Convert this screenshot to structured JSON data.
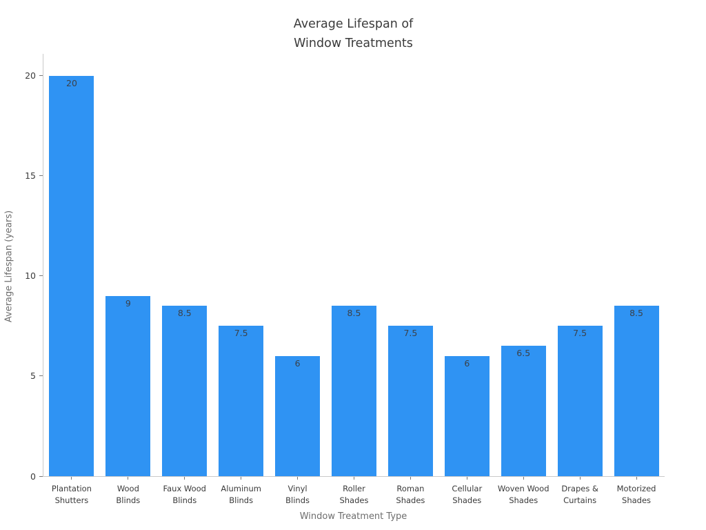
{
  "chart_data": {
    "type": "bar",
    "title": "Average Lifespan of\nWindow Treatments",
    "xlabel": "Window Treatment Type",
    "ylabel": "Average Lifespan (years)",
    "categories": [
      "Plantation\nShutters",
      "Wood\nBlinds",
      "Faux Wood\nBlinds",
      "Aluminum\nBlinds",
      "Vinyl\nBlinds",
      "Roller\nShades",
      "Roman\nShades",
      "Cellular\nShades",
      "Woven Wood\nShades",
      "Drapes &\nCurtains",
      "Motorized\nShades"
    ],
    "values": [
      20,
      9,
      8.5,
      7.5,
      6,
      8.5,
      7.5,
      6,
      6.5,
      7.5,
      8.5
    ],
    "value_labels": [
      "20",
      "9",
      "8.5",
      "7.5",
      "6",
      "8.5",
      "7.5",
      "6",
      "6.5",
      "7.5",
      "8.5"
    ],
    "yticks": [
      0,
      5,
      10,
      15,
      20
    ],
    "ylim": [
      0,
      21.1
    ],
    "bar_color": "#2f93f3",
    "grid": false,
    "legend_position": "none"
  }
}
